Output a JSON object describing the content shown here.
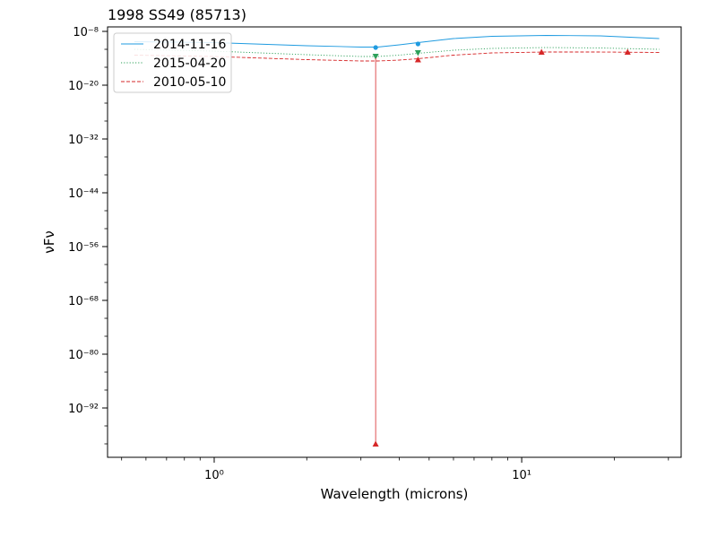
{
  "chart_data": {
    "type": "line",
    "title": "1998 SS49 (85713)",
    "xlabel": "Wavelength (microns)",
    "ylabel": "νFν",
    "x_scale": "log",
    "y_scale": "log",
    "xlim": [
      0.45,
      33
    ],
    "ylim_exp": [
      -103,
      -7
    ],
    "x_ticks": [
      {
        "value": 1,
        "label": "10⁰"
      },
      {
        "value": 10,
        "label": "10¹"
      }
    ],
    "y_ticks": [
      {
        "exp": -8,
        "label": "10⁻⁸"
      },
      {
        "exp": -20,
        "label": "10⁻²⁰"
      },
      {
        "exp": -32,
        "label": "10⁻³²"
      },
      {
        "exp": -44,
        "label": "10⁻⁴⁴"
      },
      {
        "exp": -56,
        "label": "10⁻⁵⁶"
      },
      {
        "exp": -68,
        "label": "10⁻⁶⁸"
      },
      {
        "exp": -80,
        "label": "10⁻⁸⁰"
      },
      {
        "exp": -92,
        "label": "10⁻⁹²"
      }
    ],
    "grid": false,
    "legend_position": "top-left",
    "series": [
      {
        "name": "2014-11-16",
        "color": "#1f9be0",
        "style": "solid",
        "marker": "circle",
        "curve": [
          {
            "x": 0.55,
            "exp": -10.3
          },
          {
            "x": 1.0,
            "exp": -10.5
          },
          {
            "x": 2.0,
            "exp": -11.2
          },
          {
            "x": 3.0,
            "exp": -11.5
          },
          {
            "x": 3.4,
            "exp": -11.5
          },
          {
            "x": 4.0,
            "exp": -11.0
          },
          {
            "x": 4.6,
            "exp": -10.5
          },
          {
            "x": 6.0,
            "exp": -9.6
          },
          {
            "x": 8.0,
            "exp": -9.1
          },
          {
            "x": 12.0,
            "exp": -8.9
          },
          {
            "x": 18.0,
            "exp": -9.0
          },
          {
            "x": 28.0,
            "exp": -9.6
          }
        ],
        "points": [
          {
            "x": 3.35,
            "exp": -11.6
          },
          {
            "x": 4.6,
            "exp": -10.8
          }
        ]
      },
      {
        "name": "2015-04-20",
        "color": "#2ca05a",
        "style": "dotted",
        "marker": "triangle-down",
        "curve": [
          {
            "x": 0.55,
            "exp": -12.0
          },
          {
            "x": 1.0,
            "exp": -12.4
          },
          {
            "x": 2.0,
            "exp": -13.2
          },
          {
            "x": 3.0,
            "exp": -13.6
          },
          {
            "x": 3.4,
            "exp": -13.6
          },
          {
            "x": 4.0,
            "exp": -13.3
          },
          {
            "x": 4.6,
            "exp": -12.9
          },
          {
            "x": 6.0,
            "exp": -12.2
          },
          {
            "x": 8.0,
            "exp": -11.8
          },
          {
            "x": 12.0,
            "exp": -11.6
          },
          {
            "x": 18.0,
            "exp": -11.7
          },
          {
            "x": 28.0,
            "exp": -12.0
          }
        ],
        "points": [
          {
            "x": 3.35,
            "exp": -13.6
          },
          {
            "x": 4.6,
            "exp": -12.8
          }
        ]
      },
      {
        "name": "2010-05-10",
        "color": "#d62728",
        "style": "dashed",
        "marker": "triangle-up",
        "curve": [
          {
            "x": 0.55,
            "exp": -13.3
          },
          {
            "x": 1.0,
            "exp": -13.6
          },
          {
            "x": 2.0,
            "exp": -14.3
          },
          {
            "x": 3.0,
            "exp": -14.6
          },
          {
            "x": 3.4,
            "exp": -14.6
          },
          {
            "x": 4.0,
            "exp": -14.4
          },
          {
            "x": 4.6,
            "exp": -14.1
          },
          {
            "x": 6.0,
            "exp": -13.3
          },
          {
            "x": 8.0,
            "exp": -12.8
          },
          {
            "x": 12.0,
            "exp": -12.6
          },
          {
            "x": 18.0,
            "exp": -12.6
          },
          {
            "x": 28.0,
            "exp": -12.7
          }
        ],
        "points": [
          {
            "x": 3.35,
            "exp": -100.0
          },
          {
            "x": 4.6,
            "exp": -14.3
          },
          {
            "x": 11.6,
            "exp": -12.6
          },
          {
            "x": 22.1,
            "exp": -12.6
          }
        ],
        "error_bars": [
          {
            "x": 3.35,
            "exp_low": -100.0,
            "exp_high": -14.0
          }
        ]
      }
    ]
  }
}
